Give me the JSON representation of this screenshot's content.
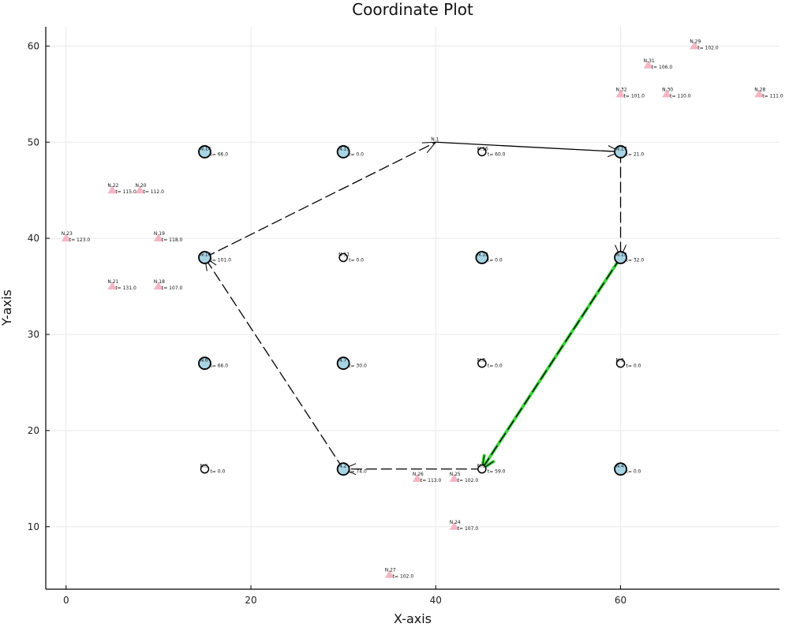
{
  "chart_data": {
    "type": "scatter",
    "title": "Coordinate Plot",
    "xlabel": "X-axis",
    "ylabel": "Y-axis",
    "xlim": [
      -2.2,
      77.2
    ],
    "ylim": [
      3.5,
      62.0
    ],
    "xticks": [
      0,
      20,
      40,
      60
    ],
    "yticks": [
      10,
      20,
      30,
      40,
      50,
      60
    ],
    "grid": true,
    "colors": {
      "circle_fill": "#a8d3e3",
      "triangle_fill": "#f4b6c2",
      "route": "#000000",
      "highlight": "#3cd13c"
    },
    "circle_nodes": [
      {
        "label": "N.1",
        "x": 40,
        "y": 50,
        "t": "",
        "size": "none"
      },
      {
        "label": "N.2",
        "x": 30,
        "y": 16,
        "t": "t= 74.0",
        "size": "large"
      },
      {
        "label": "N.3",
        "x": 45,
        "y": 16,
        "t": "t= 59.0",
        "size": "small"
      },
      {
        "label": "N.4",
        "x": 60,
        "y": 16,
        "t": "t= 0.0",
        "size": "large"
      },
      {
        "label": "N.5",
        "x": 15,
        "y": 16,
        "t": "t= 0.0",
        "size": "small"
      },
      {
        "label": "N.6",
        "x": 15,
        "y": 27,
        "t": "t= 66.0",
        "size": "large"
      },
      {
        "label": "N.7",
        "x": 30,
        "y": 27,
        "t": "t= 30.0",
        "size": "large"
      },
      {
        "label": "N.8",
        "x": 45,
        "y": 27,
        "t": "t= 0.0",
        "size": "small"
      },
      {
        "label": "N.9",
        "x": 60,
        "y": 27,
        "t": "t= 0.0",
        "size": "small"
      },
      {
        "label": "N.10",
        "x": 15,
        "y": 38,
        "t": "t= 101.0",
        "size": "large"
      },
      {
        "label": "N.11",
        "x": 30,
        "y": 38,
        "t": "t= 0.0",
        "size": "small"
      },
      {
        "label": "N.12",
        "x": 45,
        "y": 38,
        "t": "t= 0.0",
        "size": "large"
      },
      {
        "label": "N.13",
        "x": 60,
        "y": 38,
        "t": "t= 32.0",
        "size": "large"
      },
      {
        "label": "N.14",
        "x": 15,
        "y": 49,
        "t": "t= 66.0",
        "size": "large"
      },
      {
        "label": "N.15",
        "x": 30,
        "y": 49,
        "t": "t= 0.0",
        "size": "large"
      },
      {
        "label": "N.16",
        "x": 45,
        "y": 49,
        "t": "t= 60.0",
        "size": "small"
      },
      {
        "label": "N.17",
        "x": 60,
        "y": 49,
        "t": "t= 21.0",
        "size": "large"
      }
    ],
    "triangle_nodes": [
      {
        "label": "N.18",
        "x": 10,
        "y": 35,
        "t": "t= 107.0"
      },
      {
        "label": "N.19",
        "x": 10,
        "y": 40,
        "t": "t= 118.0"
      },
      {
        "label": "N.20",
        "x": 8,
        "y": 45,
        "t": "t= 112.0"
      },
      {
        "label": "N.21",
        "x": 5,
        "y": 35,
        "t": "t= 131.0"
      },
      {
        "label": "N.22",
        "x": 5,
        "y": 45,
        "t": "t= 115.0"
      },
      {
        "label": "N.23",
        "x": 0,
        "y": 40,
        "t": "t= 123.0"
      },
      {
        "label": "N.24",
        "x": 42,
        "y": 10,
        "t": "t= 107.0"
      },
      {
        "label": "N.25",
        "x": 42,
        "y": 15,
        "t": "t= 102.0"
      },
      {
        "label": "N.26",
        "x": 38,
        "y": 15,
        "t": "t= 113.0"
      },
      {
        "label": "N.27",
        "x": 35,
        "y": 5,
        "t": "t= 102.0"
      },
      {
        "label": "N.28",
        "x": 75,
        "y": 55,
        "t": "t= 111.0"
      },
      {
        "label": "N.29",
        "x": 68,
        "y": 60,
        "t": "t= 102.0"
      },
      {
        "label": "N.30",
        "x": 65,
        "y": 55,
        "t": "t= 110.0"
      },
      {
        "label": "N.31",
        "x": 63,
        "y": 58,
        "t": "t= 106.0"
      },
      {
        "label": "N.32",
        "x": 60,
        "y": 55,
        "t": "t= 101.0"
      }
    ],
    "route_edges": [
      {
        "from": [
          40,
          50
        ],
        "to": [
          60,
          49
        ],
        "style": "solid"
      },
      {
        "from": [
          60,
          49
        ],
        "to": [
          60,
          38
        ],
        "style": "dashed"
      },
      {
        "from": [
          30,
          16
        ],
        "to": [
          15,
          38
        ],
        "style": "dashed"
      },
      {
        "from": [
          15,
          38
        ],
        "to": [
          40,
          50
        ],
        "style": "dashed"
      },
      {
        "from": [
          45,
          16
        ],
        "to": [
          30,
          16
        ],
        "style": "dashed"
      }
    ],
    "highlight_edges": [
      {
        "from": [
          60,
          38
        ],
        "to": [
          45,
          16
        ],
        "style": "dashed"
      }
    ]
  }
}
